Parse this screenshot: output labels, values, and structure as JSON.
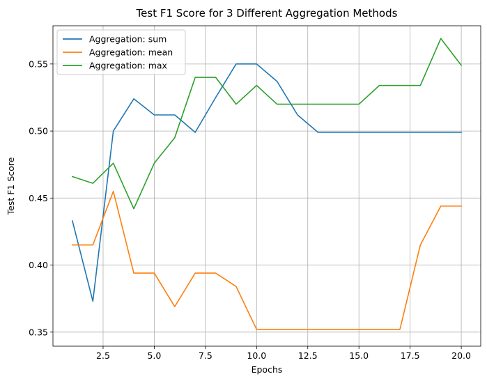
{
  "chart_data": {
    "type": "line",
    "title": "Test F1 Score for 3 Different Aggregation Methods",
    "xlabel": "Epochs",
    "ylabel": "Test F1 Score",
    "xlim": [
      0.05,
      20.95
    ],
    "ylim": [
      0.3395,
      0.5785
    ],
    "xticks": [
      2.5,
      5.0,
      7.5,
      10.0,
      12.5,
      15.0,
      17.5,
      20.0
    ],
    "xtick_labels": [
      "2.5",
      "5.0",
      "7.5",
      "10.0",
      "12.5",
      "15.0",
      "17.5",
      "20.0"
    ],
    "yticks": [
      0.35,
      0.4,
      0.45,
      0.5,
      0.55
    ],
    "ytick_labels": [
      "0.35",
      "0.40",
      "0.45",
      "0.50",
      "0.55"
    ],
    "grid": true,
    "legend_position": "top-left",
    "x": [
      1,
      2,
      3,
      4,
      5,
      6,
      7,
      8,
      9,
      10,
      11,
      12,
      13,
      14,
      15,
      16,
      17,
      18,
      19,
      20
    ],
    "series": [
      {
        "name": "Aggregation: sum",
        "color": "#1f77b4",
        "values": [
          0.433,
          0.373,
          0.5,
          0.524,
          0.512,
          0.512,
          0.499,
          0.525,
          0.55,
          0.55,
          0.537,
          0.512,
          0.499,
          0.499,
          0.499,
          0.499,
          0.499,
          0.499,
          0.499,
          0.499
        ]
      },
      {
        "name": "Aggregation: mean",
        "color": "#ff7f0e",
        "values": [
          0.415,
          0.415,
          0.455,
          0.394,
          0.394,
          0.369,
          0.394,
          0.394,
          0.384,
          0.352,
          0.352,
          0.352,
          0.352,
          0.352,
          0.352,
          0.352,
          0.352,
          0.415,
          0.444,
          0.444
        ]
      },
      {
        "name": "Aggregation: max",
        "color": "#2ca02c",
        "values": [
          0.466,
          0.461,
          0.476,
          0.442,
          0.476,
          0.495,
          0.54,
          0.54,
          0.52,
          0.534,
          0.52,
          0.52,
          0.52,
          0.52,
          0.52,
          0.534,
          0.534,
          0.534,
          0.569,
          0.549
        ]
      }
    ]
  }
}
